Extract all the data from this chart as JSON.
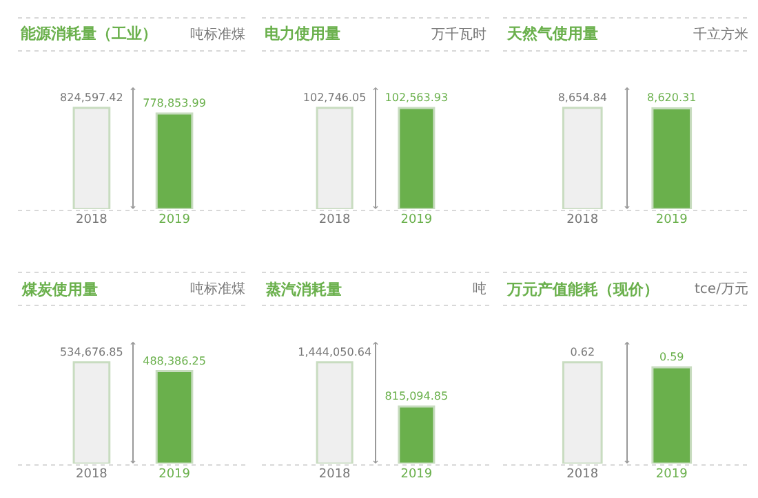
{
  "chart_data": [
    {
      "type": "bar",
      "title": "能源消耗量（工业）",
      "subtitle": "吨标准煤",
      "categories": [
        "2018",
        "2019"
      ],
      "values": [
        824597.42,
        778853.99
      ],
      "value_labels": [
        "824,597.42",
        "778,853.99"
      ],
      "colors": [
        "#efefef",
        "#6ab04c"
      ]
    },
    {
      "type": "bar",
      "title": "电力使用量",
      "subtitle": "万千瓦时",
      "categories": [
        "2018",
        "2019"
      ],
      "values": [
        102746.05,
        102563.93
      ],
      "value_labels": [
        "102,746.05",
        "102,563.93"
      ],
      "colors": [
        "#efefef",
        "#6ab04c"
      ]
    },
    {
      "type": "bar",
      "title": "天然气使用量",
      "subtitle": "千立方米",
      "categories": [
        "2018",
        "2019"
      ],
      "values": [
        8654.84,
        8620.31
      ],
      "value_labels": [
        "8,654.84",
        "8,620.31"
      ],
      "colors": [
        "#efefef",
        "#6ab04c"
      ]
    },
    {
      "type": "bar",
      "title": "煤炭使用量",
      "subtitle": "吨标准煤",
      "categories": [
        "2018",
        "2019"
      ],
      "values": [
        534676.85,
        488386.25
      ],
      "value_labels": [
        "534,676.85",
        "488,386.25"
      ],
      "colors": [
        "#efefef",
        "#6ab04c"
      ]
    },
    {
      "type": "bar",
      "title": "蒸汽消耗量",
      "subtitle": "吨",
      "categories": [
        "2018",
        "2019"
      ],
      "values": [
        1444050.64,
        815094.85
      ],
      "value_labels": [
        "1,444,050.64",
        "815,094.85"
      ],
      "colors": [
        "#efefef",
        "#6ab04c"
      ]
    },
    {
      "type": "bar",
      "title": "万元产值能耗（现价）",
      "subtitle": "tce/万元",
      "categories": [
        "2018",
        "2019"
      ],
      "values": [
        0.62,
        0.59
      ],
      "value_labels": [
        "0.62",
        "0.59"
      ],
      "colors": [
        "#efefef",
        "#6ab04c"
      ]
    }
  ]
}
